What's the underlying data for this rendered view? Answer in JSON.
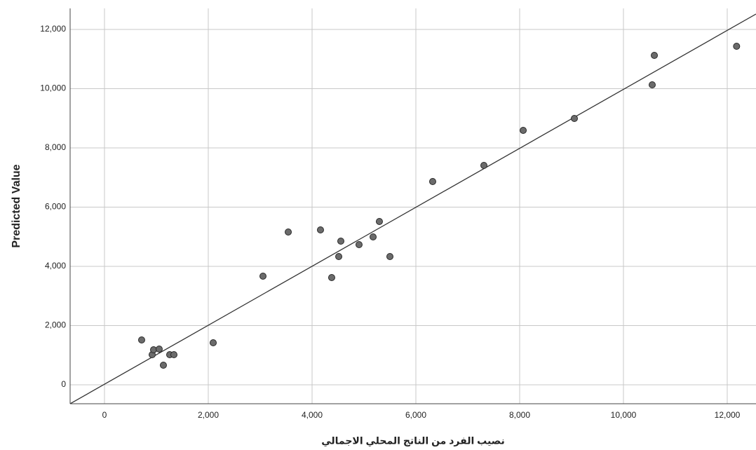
{
  "chart_data": {
    "type": "scatter",
    "x_label": "نصيب الفرد من الناتج المحلي الاجمالي",
    "y_label": "Predicted Value",
    "x": [
      716,
      919,
      946,
      1054,
      1135,
      1257,
      1338,
      2095,
      3054,
      3541,
      4162,
      4378,
      4514,
      4554,
      4905,
      5176,
      5297,
      5500,
      6324,
      7311,
      8068,
      9054,
      10554,
      10595,
      12180
    ],
    "values": [
      1515,
      1018,
      1183,
      1207,
      663,
      1018,
      1018,
      1420,
      3669,
      5160,
      5231,
      3621,
      4331,
      4852,
      4734,
      4994,
      5515,
      4331,
      6864,
      7408,
      8592,
      8994,
      10130,
      11124,
      11432
    ],
    "color": "#6b6b6b",
    "fit_line": {
      "x": [
        -662,
        12554
      ],
      "y": [
        -639,
        12520
      ],
      "color": "#333333"
    },
    "xlim": [
      -662,
      12554
    ],
    "ylim": [
      -639,
      12710
    ],
    "xticks": [
      0,
      {
        "value": 2000,
        "label": "2,000"
      },
      {
        "value": 4000,
        "label": "4,000"
      },
      {
        "value": 6000,
        "label": "6,000"
      },
      {
        "value": 8000,
        "label": "8,000"
      },
      {
        "value": 10000,
        "label": "10,000"
      },
      {
        "value": 12000,
        "label": "12,000"
      }
    ],
    "yticks": [
      0,
      {
        "value": 2000,
        "label": "2,000"
      },
      {
        "value": 4000,
        "label": "4,000"
      },
      {
        "value": 6000,
        "label": "6,000"
      },
      {
        "value": 8000,
        "label": "8,000"
      },
      {
        "value": 10000,
        "label": "10,000"
      },
      {
        "value": 12000,
        "label": "12,000"
      }
    ],
    "grid": true
  }
}
